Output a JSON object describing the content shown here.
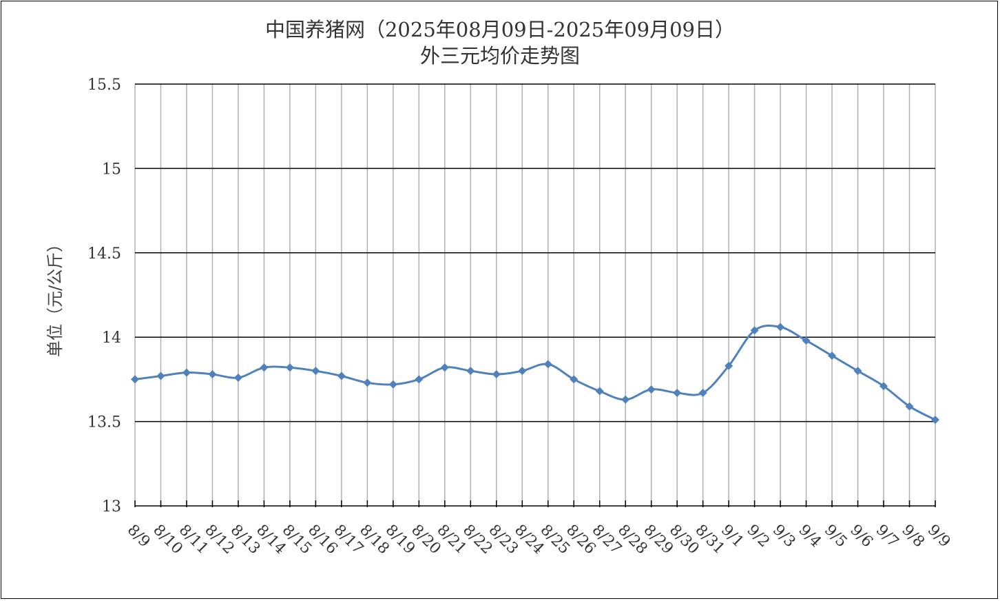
{
  "chart_data": {
    "type": "line",
    "title": "中国养猪网（2025年08月09日-2025年09月09日）",
    "subtitle": "外三元均价走势图",
    "xlabel": "",
    "ylabel": "单位（元/公斤）",
    "ylim": [
      13,
      15.5
    ],
    "yticks": [
      "13",
      "13.5",
      "14",
      "14.5",
      "15",
      "15.5"
    ],
    "grid": true,
    "categories": [
      "8/9",
      "8/10",
      "8/11",
      "8/12",
      "8/13",
      "8/14",
      "8/15",
      "8/16",
      "8/17",
      "8/18",
      "8/19",
      "8/20",
      "8/21",
      "8/22",
      "8/23",
      "8/24",
      "8/25",
      "8/26",
      "8/27",
      "8/28",
      "8/29",
      "8/30",
      "8/31",
      "9/1",
      "9/2",
      "9/3",
      "9/4",
      "9/5",
      "9/6",
      "9/7",
      "9/8",
      "9/9"
    ],
    "values": [
      13.75,
      13.77,
      13.79,
      13.78,
      13.76,
      13.82,
      13.82,
      13.8,
      13.77,
      13.73,
      13.72,
      13.75,
      13.82,
      13.8,
      13.78,
      13.8,
      13.84,
      13.75,
      13.68,
      13.63,
      13.69,
      13.67,
      13.67,
      13.83,
      14.04,
      14.06,
      13.98,
      13.89,
      13.8,
      13.71,
      13.59,
      13.51
    ],
    "line_color": "#4F81BD"
  }
}
